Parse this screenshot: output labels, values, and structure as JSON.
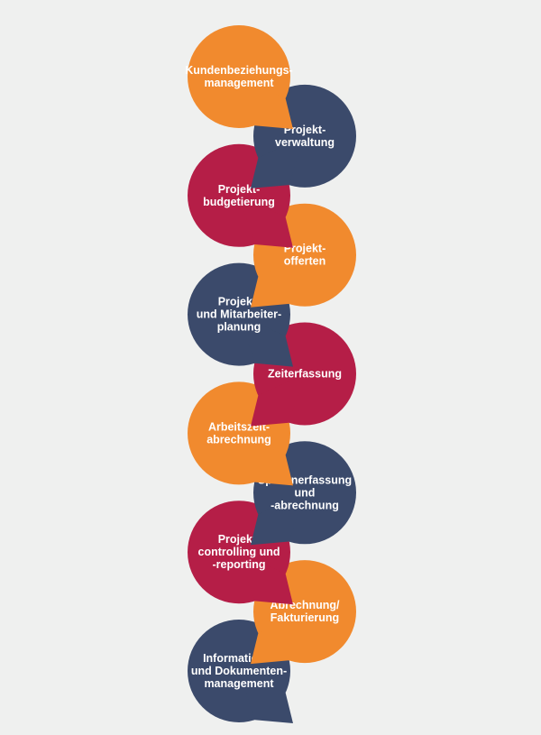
{
  "colors": {
    "orange": "#f18a2e",
    "navy": "#3b4a6b",
    "crimson": "#b51e47",
    "background": "#eff0ef",
    "text": "#ffffff"
  },
  "bubbles": [
    {
      "lines": [
        "Kundenbeziehungs-",
        "management"
      ],
      "color": "orange",
      "side": "left"
    },
    {
      "lines": [
        "Projekt-",
        "verwaltung"
      ],
      "color": "navy",
      "side": "right"
    },
    {
      "lines": [
        "Projekt-",
        "budgetierung"
      ],
      "color": "crimson",
      "side": "left"
    },
    {
      "lines": [
        "Projekt-",
        "offerten"
      ],
      "color": "orange",
      "side": "right"
    },
    {
      "lines": [
        "Projekt-",
        "und Mitarbeiter-",
        "planung"
      ],
      "color": "navy",
      "side": "left"
    },
    {
      "lines": [
        "Zeiterfassung"
      ],
      "color": "crimson",
      "side": "right"
    },
    {
      "lines": [
        "Arbeitszeit-",
        "abrechnung"
      ],
      "color": "orange",
      "side": "left"
    },
    {
      "lines": [
        "Spesenerfassung",
        "und",
        "-abrechnung"
      ],
      "color": "navy",
      "side": "right"
    },
    {
      "lines": [
        "Projekt-",
        "controlling und",
        "-reporting"
      ],
      "color": "crimson",
      "side": "left"
    },
    {
      "lines": [
        "Abrechnung/",
        "Fakturierung"
      ],
      "color": "orange",
      "side": "right"
    },
    {
      "lines": [
        "Informations-",
        "und Dokumenten-",
        "management"
      ],
      "color": "navy",
      "side": "left"
    }
  ]
}
